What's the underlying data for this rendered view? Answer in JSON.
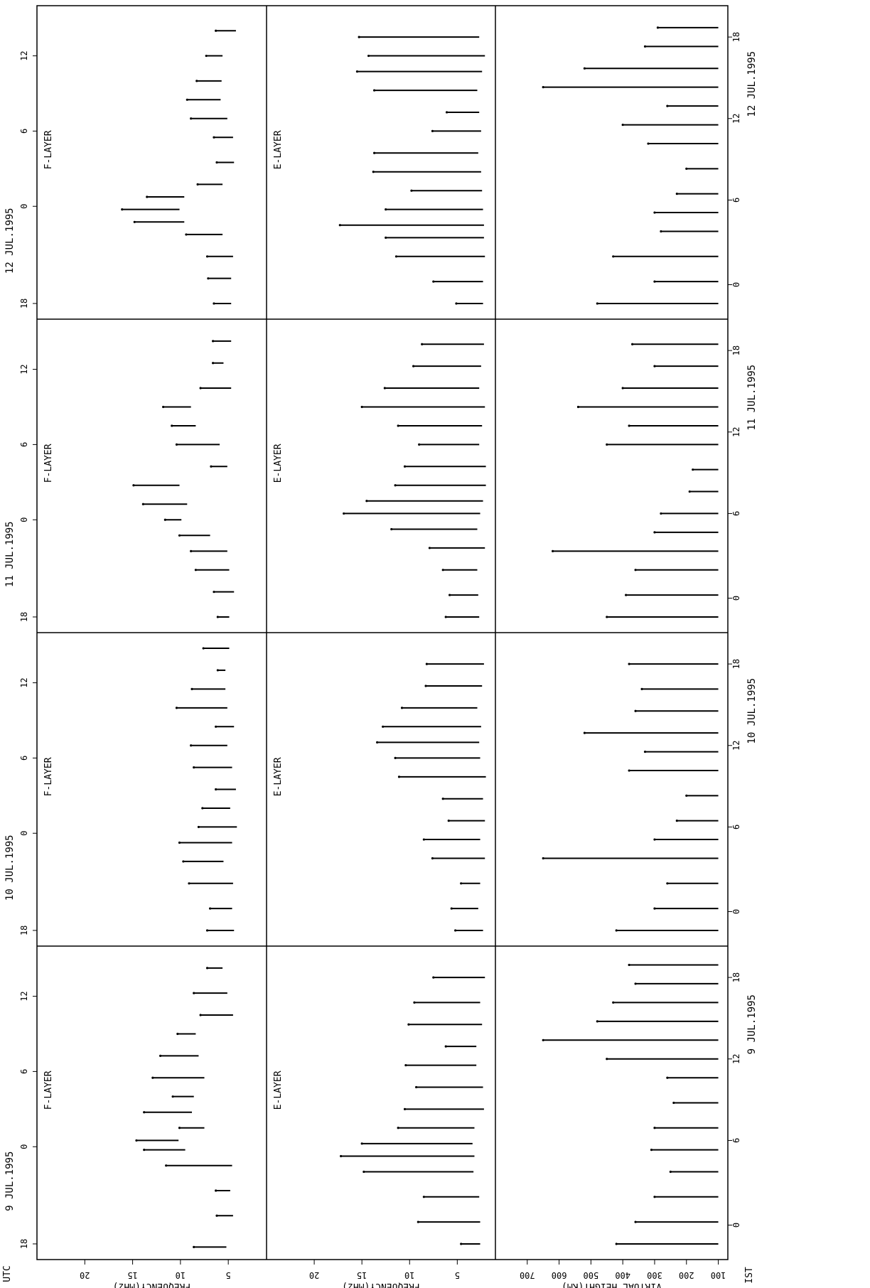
{
  "chart_data": {
    "type": "scatter",
    "corner_labels": {
      "utc": "UTC",
      "ist": "IST"
    },
    "date_labels": [
      "9 JUL.1995",
      "10 JUL.1995",
      "11 JUL.1995",
      "12 JUL.1995"
    ],
    "utc_ticks": [
      "18",
      "0",
      "6",
      "12"
    ],
    "ist_ticks": [
      "0",
      "6",
      "12",
      "18"
    ],
    "panels": [
      {
        "layer_label": "F-LAYER",
        "axis_label": "FREQUENCY(MHz)",
        "axis_ticks": [
          "5",
          "10",
          "15",
          "20"
        ],
        "range": [
          1,
          25
        ],
        "days": [
          [
            {
              "t": 0.04,
              "base": 5.2,
              "max": 8.6
            },
            {
              "t": 0.14,
              "base": 4.5,
              "max": 6.2
            },
            {
              "t": 0.22,
              "base": 4.8,
              "max": 6.3
            },
            {
              "t": 0.3,
              "base": 4.6,
              "max": 11.5
            },
            {
              "t": 0.35,
              "base": 9.5,
              "max": 13.8
            },
            {
              "t": 0.38,
              "base": 10.2,
              "max": 14.6
            },
            {
              "t": 0.42,
              "base": 7.5,
              "max": 10.1
            },
            {
              "t": 0.47,
              "base": 8.8,
              "max": 13.8
            },
            {
              "t": 0.52,
              "base": 8.6,
              "max": 10.8
            },
            {
              "t": 0.58,
              "base": 7.5,
              "max": 12.9
            },
            {
              "t": 0.65,
              "base": 8.1,
              "max": 12.1
            },
            {
              "t": 0.72,
              "base": 8.4,
              "max": 10.3
            },
            {
              "t": 0.78,
              "base": 4.5,
              "max": 7.9
            },
            {
              "t": 0.85,
              "base": 5.1,
              "max": 8.6
            },
            {
              "t": 0.93,
              "base": 5.6,
              "max": 7.2
            }
          ],
          [
            {
              "t": 0.05,
              "base": 4.4,
              "max": 7.2
            },
            {
              "t": 0.12,
              "base": 4.6,
              "max": 6.9
            },
            {
              "t": 0.2,
              "base": 4.5,
              "max": 9.1
            },
            {
              "t": 0.27,
              "base": 5.5,
              "max": 9.7
            },
            {
              "t": 0.33,
              "base": 4.6,
              "max": 10.1
            },
            {
              "t": 0.38,
              "base": 4.1,
              "max": 8.1
            },
            {
              "t": 0.44,
              "base": 4.8,
              "max": 7.7
            },
            {
              "t": 0.5,
              "base": 4.2,
              "max": 6.3
            },
            {
              "t": 0.57,
              "base": 4.6,
              "max": 8.6
            },
            {
              "t": 0.64,
              "base": 5.1,
              "max": 8.9
            },
            {
              "t": 0.7,
              "base": 4.4,
              "max": 6.3
            },
            {
              "t": 0.76,
              "base": 5.1,
              "max": 10.4
            },
            {
              "t": 0.82,
              "base": 5.3,
              "max": 8.8
            },
            {
              "t": 0.88,
              "base": 5.3,
              "max": 6.1
            },
            {
              "t": 0.95,
              "base": 4.9,
              "max": 7.6
            }
          ],
          [
            {
              "t": 0.05,
              "base": 4.9,
              "max": 6.1
            },
            {
              "t": 0.13,
              "base": 4.4,
              "max": 6.5
            },
            {
              "t": 0.2,
              "base": 4.9,
              "max": 8.4
            },
            {
              "t": 0.26,
              "base": 5.1,
              "max": 8.9
            },
            {
              "t": 0.31,
              "base": 6.9,
              "max": 10.1
            },
            {
              "t": 0.36,
              "base": 9.9,
              "max": 11.6
            },
            {
              "t": 0.41,
              "base": 9.3,
              "max": 13.9
            },
            {
              "t": 0.47,
              "base": 10.1,
              "max": 14.9
            },
            {
              "t": 0.53,
              "base": 5.1,
              "max": 6.8
            },
            {
              "t": 0.6,
              "base": 5.9,
              "max": 10.4
            },
            {
              "t": 0.66,
              "base": 8.4,
              "max": 10.9
            },
            {
              "t": 0.72,
              "base": 8.9,
              "max": 11.8
            },
            {
              "t": 0.78,
              "base": 4.7,
              "max": 7.9
            },
            {
              "t": 0.86,
              "base": 5.5,
              "max": 6.6
            },
            {
              "t": 0.93,
              "base": 4.7,
              "max": 6.6
            }
          ],
          [
            {
              "t": 0.05,
              "base": 4.7,
              "max": 6.5
            },
            {
              "t": 0.13,
              "base": 4.7,
              "max": 7.1
            },
            {
              "t": 0.2,
              "base": 4.5,
              "max": 7.2
            },
            {
              "t": 0.27,
              "base": 5.6,
              "max": 9.4
            },
            {
              "t": 0.31,
              "base": 9.6,
              "max": 14.8
            },
            {
              "t": 0.35,
              "base": 10.1,
              "max": 16.1
            },
            {
              "t": 0.39,
              "base": 9.6,
              "max": 13.5
            },
            {
              "t": 0.43,
              "base": 5.6,
              "max": 8.2
            },
            {
              "t": 0.5,
              "base": 4.4,
              "max": 6.2
            },
            {
              "t": 0.58,
              "base": 4.5,
              "max": 6.5
            },
            {
              "t": 0.64,
              "base": 5.1,
              "max": 8.9
            },
            {
              "t": 0.7,
              "base": 5.8,
              "max": 9.3
            },
            {
              "t": 0.76,
              "base": 5.7,
              "max": 8.3
            },
            {
              "t": 0.84,
              "base": 5.6,
              "max": 7.3
            },
            {
              "t": 0.92,
              "base": 4.2,
              "max": 6.3
            }
          ]
        ]
      },
      {
        "layer_label": "E-LAYER",
        "axis_label": "FREQUENCY(MHz)",
        "axis_ticks": [
          "5",
          "10",
          "15",
          "20"
        ],
        "range": [
          1,
          25
        ],
        "days": [
          [
            {
              "t": 0.05,
              "base": 2.6,
              "max": 4.6
            },
            {
              "t": 0.12,
              "base": 2.6,
              "max": 9.1
            },
            {
              "t": 0.2,
              "base": 2.7,
              "max": 8.5
            },
            {
              "t": 0.28,
              "base": 3.3,
              "max": 14.8
            },
            {
              "t": 0.33,
              "base": 3.2,
              "max": 17.2
            },
            {
              "t": 0.37,
              "base": 3.4,
              "max": 15.0
            },
            {
              "t": 0.42,
              "base": 3.2,
              "max": 11.2
            },
            {
              "t": 0.48,
              "base": 2.2,
              "max": 10.5
            },
            {
              "t": 0.55,
              "base": 2.3,
              "max": 9.3
            },
            {
              "t": 0.62,
              "base": 3.0,
              "max": 10.4
            },
            {
              "t": 0.68,
              "base": 3.0,
              "max": 6.2
            },
            {
              "t": 0.75,
              "base": 2.4,
              "max": 10.1
            },
            {
              "t": 0.82,
              "base": 2.6,
              "max": 9.5
            },
            {
              "t": 0.9,
              "base": 2.1,
              "max": 7.5
            }
          ],
          [
            {
              "t": 0.05,
              "base": 2.3,
              "max": 5.2
            },
            {
              "t": 0.12,
              "base": 2.8,
              "max": 5.6
            },
            {
              "t": 0.2,
              "base": 2.6,
              "max": 4.6
            },
            {
              "t": 0.28,
              "base": 2.1,
              "max": 7.6
            },
            {
              "t": 0.34,
              "base": 2.6,
              "max": 8.5
            },
            {
              "t": 0.4,
              "base": 2.1,
              "max": 5.9
            },
            {
              "t": 0.47,
              "base": 2.3,
              "max": 6.5
            },
            {
              "t": 0.54,
              "base": 2.0,
              "max": 11.1
            },
            {
              "t": 0.6,
              "base": 2.6,
              "max": 11.5
            },
            {
              "t": 0.65,
              "base": 2.7,
              "max": 13.4
            },
            {
              "t": 0.7,
              "base": 2.5,
              "max": 12.8
            },
            {
              "t": 0.76,
              "base": 2.9,
              "max": 10.8
            },
            {
              "t": 0.83,
              "base": 2.4,
              "max": 8.3
            },
            {
              "t": 0.9,
              "base": 2.2,
              "max": 8.2
            }
          ],
          [
            {
              "t": 0.05,
              "base": 2.7,
              "max": 6.2
            },
            {
              "t": 0.12,
              "base": 2.8,
              "max": 5.8
            },
            {
              "t": 0.2,
              "base": 2.9,
              "max": 6.5
            },
            {
              "t": 0.27,
              "base": 2.1,
              "max": 7.9
            },
            {
              "t": 0.33,
              "base": 2.9,
              "max": 11.9
            },
            {
              "t": 0.38,
              "base": 2.6,
              "max": 16.9
            },
            {
              "t": 0.42,
              "base": 2.3,
              "max": 14.5
            },
            {
              "t": 0.47,
              "base": 2.0,
              "max": 11.5
            },
            {
              "t": 0.53,
              "base": 2.0,
              "max": 10.5
            },
            {
              "t": 0.6,
              "base": 2.7,
              "max": 9.0
            },
            {
              "t": 0.66,
              "base": 2.4,
              "max": 11.2
            },
            {
              "t": 0.72,
              "base": 2.1,
              "max": 15.0
            },
            {
              "t": 0.78,
              "base": 2.7,
              "max": 12.6
            },
            {
              "t": 0.85,
              "base": 2.5,
              "max": 9.6
            },
            {
              "t": 0.92,
              "base": 2.2,
              "max": 8.7
            }
          ],
          [
            {
              "t": 0.05,
              "base": 2.3,
              "max": 5.1
            },
            {
              "t": 0.12,
              "base": 2.3,
              "max": 7.5
            },
            {
              "t": 0.2,
              "base": 2.1,
              "max": 11.4
            },
            {
              "t": 0.26,
              "base": 2.2,
              "max": 12.5
            },
            {
              "t": 0.3,
              "base": 2.2,
              "max": 17.3
            },
            {
              "t": 0.35,
              "base": 2.3,
              "max": 12.5
            },
            {
              "t": 0.41,
              "base": 2.4,
              "max": 9.8
            },
            {
              "t": 0.47,
              "base": 2.5,
              "max": 13.8
            },
            {
              "t": 0.53,
              "base": 2.8,
              "max": 13.7
            },
            {
              "t": 0.6,
              "base": 2.5,
              "max": 7.6
            },
            {
              "t": 0.66,
              "base": 2.7,
              "max": 6.1
            },
            {
              "t": 0.73,
              "base": 2.9,
              "max": 13.7
            },
            {
              "t": 0.79,
              "base": 2.4,
              "max": 15.5
            },
            {
              "t": 0.84,
              "base": 2.1,
              "max": 14.3
            },
            {
              "t": 0.9,
              "base": 2.7,
              "max": 15.3
            }
          ]
        ]
      },
      {
        "layer_label": "",
        "axis_label": "VIRTUAL HEIGHT(KM)",
        "axis_ticks": [
          "100",
          "200",
          "300",
          "400",
          "500",
          "600",
          "700"
        ],
        "range": [
          70,
          800
        ],
        "days": [
          [
            {
              "t": 0.05,
              "base": 100,
              "max": 420
            },
            {
              "t": 0.12,
              "base": 100,
              "max": 360
            },
            {
              "t": 0.2,
              "base": 100,
              "max": 300
            },
            {
              "t": 0.28,
              "base": 100,
              "max": 250
            },
            {
              "t": 0.35,
              "base": 100,
              "max": 310
            },
            {
              "t": 0.42,
              "base": 100,
              "max": 300
            },
            {
              "t": 0.5,
              "base": 100,
              "max": 240
            },
            {
              "t": 0.58,
              "base": 100,
              "max": 260
            },
            {
              "t": 0.64,
              "base": 100,
              "max": 450
            },
            {
              "t": 0.7,
              "base": 100,
              "max": 650
            },
            {
              "t": 0.76,
              "base": 100,
              "max": 480
            },
            {
              "t": 0.82,
              "base": 100,
              "max": 430
            },
            {
              "t": 0.88,
              "base": 100,
              "max": 360
            },
            {
              "t": 0.94,
              "base": 100,
              "max": 380
            }
          ],
          [
            {
              "t": 0.05,
              "base": 100,
              "max": 420
            },
            {
              "t": 0.12,
              "base": 100,
              "max": 300
            },
            {
              "t": 0.2,
              "base": 100,
              "max": 260
            },
            {
              "t": 0.28,
              "base": 100,
              "max": 650
            },
            {
              "t": 0.34,
              "base": 100,
              "max": 300
            },
            {
              "t": 0.4,
              "base": 100,
              "max": 230
            },
            {
              "t": 0.48,
              "base": 100,
              "max": 200
            },
            {
              "t": 0.56,
              "base": 100,
              "max": 380
            },
            {
              "t": 0.62,
              "base": 100,
              "max": 330
            },
            {
              "t": 0.68,
              "base": 100,
              "max": 520
            },
            {
              "t": 0.75,
              "base": 100,
              "max": 360
            },
            {
              "t": 0.82,
              "base": 100,
              "max": 340
            },
            {
              "t": 0.9,
              "base": 100,
              "max": 380
            }
          ],
          [
            {
              "t": 0.05,
              "base": 100,
              "max": 450
            },
            {
              "t": 0.12,
              "base": 100,
              "max": 390
            },
            {
              "t": 0.2,
              "base": 100,
              "max": 360
            },
            {
              "t": 0.26,
              "base": 100,
              "max": 620
            },
            {
              "t": 0.32,
              "base": 100,
              "max": 300
            },
            {
              "t": 0.38,
              "base": 100,
              "max": 280
            },
            {
              "t": 0.45,
              "base": 100,
              "max": 190
            },
            {
              "t": 0.52,
              "base": 100,
              "max": 180
            },
            {
              "t": 0.6,
              "base": 100,
              "max": 450
            },
            {
              "t": 0.66,
              "base": 100,
              "max": 380
            },
            {
              "t": 0.72,
              "base": 100,
              "max": 540
            },
            {
              "t": 0.78,
              "base": 100,
              "max": 400
            },
            {
              "t": 0.85,
              "base": 100,
              "max": 300
            },
            {
              "t": 0.92,
              "base": 100,
              "max": 370
            }
          ],
          [
            {
              "t": 0.05,
              "base": 100,
              "max": 480
            },
            {
              "t": 0.12,
              "base": 100,
              "max": 300
            },
            {
              "t": 0.2,
              "base": 100,
              "max": 430
            },
            {
              "t": 0.28,
              "base": 100,
              "max": 280
            },
            {
              "t": 0.34,
              "base": 100,
              "max": 300
            },
            {
              "t": 0.4,
              "base": 100,
              "max": 230
            },
            {
              "t": 0.48,
              "base": 100,
              "max": 200
            },
            {
              "t": 0.56,
              "base": 100,
              "max": 320
            },
            {
              "t": 0.62,
              "base": 100,
              "max": 400
            },
            {
              "t": 0.68,
              "base": 100,
              "max": 260
            },
            {
              "t": 0.74,
              "base": 100,
              "max": 650
            },
            {
              "t": 0.8,
              "base": 100,
              "max": 520
            },
            {
              "t": 0.87,
              "base": 100,
              "max": 330
            },
            {
              "t": 0.93,
              "base": 100,
              "max": 290
            }
          ]
        ]
      }
    ]
  }
}
